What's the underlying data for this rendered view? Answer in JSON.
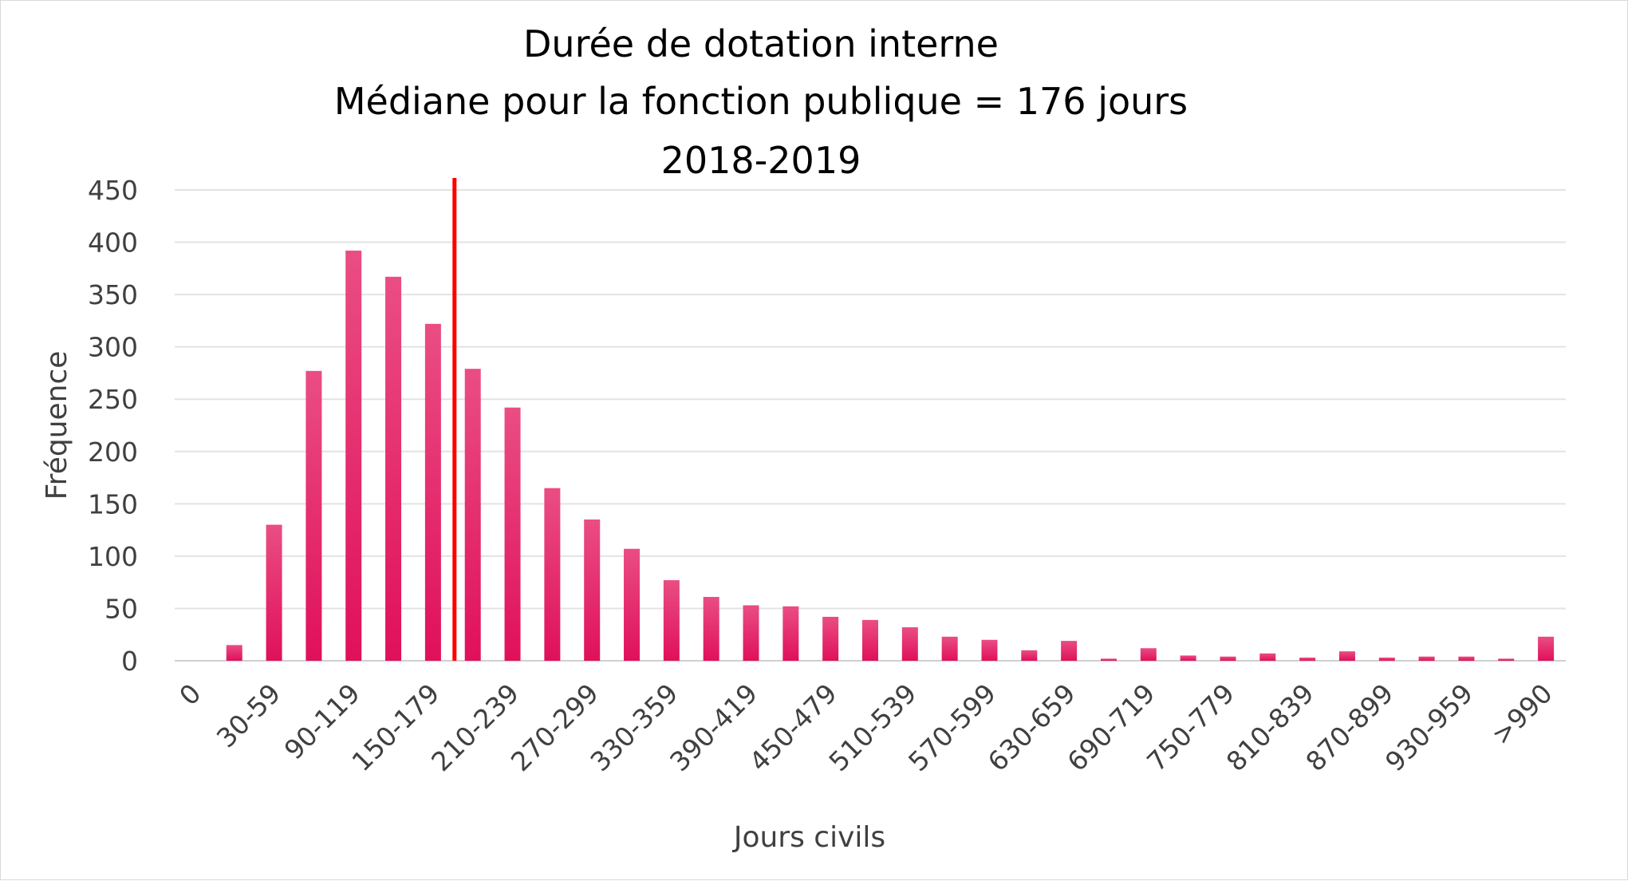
{
  "chart_data": {
    "type": "bar",
    "title_lines": [
      "Durée de dotation interne",
      "Médiane pour la fonction publique = 176 jours",
      "2018-2019"
    ],
    "xlabel": "Jours civils",
    "ylabel": "Fréquence",
    "ylim": [
      0,
      450
    ],
    "yticks": [
      0,
      50,
      100,
      150,
      200,
      250,
      300,
      350,
      400,
      450
    ],
    "grid": true,
    "legend": "none",
    "bar_color": "#e0105a",
    "bar_color_light": "#ea4d84",
    "median_line_color": "#ff0000",
    "median_position": "between the 150-179 bar and the following bar",
    "categories": [
      "0",
      "",
      "30-59",
      "",
      "90-119",
      "",
      "150-179",
      "",
      "210-239",
      "",
      "270-299",
      "",
      "330-359",
      "",
      "390-419",
      "",
      "450-479",
      "",
      "510-539",
      "",
      "570-599",
      "",
      "630-659",
      "",
      "690-719",
      "",
      "750-779",
      "",
      "810-839",
      "",
      "870-899",
      "",
      "930-959",
      "",
      ">990"
    ],
    "values": [
      0,
      15,
      130,
      277,
      392,
      367,
      322,
      279,
      242,
      165,
      135,
      107,
      77,
      61,
      53,
      52,
      42,
      39,
      32,
      23,
      20,
      10,
      19,
      2,
      12,
      5,
      4,
      7,
      3,
      9,
      3,
      4,
      4,
      2,
      23
    ]
  }
}
